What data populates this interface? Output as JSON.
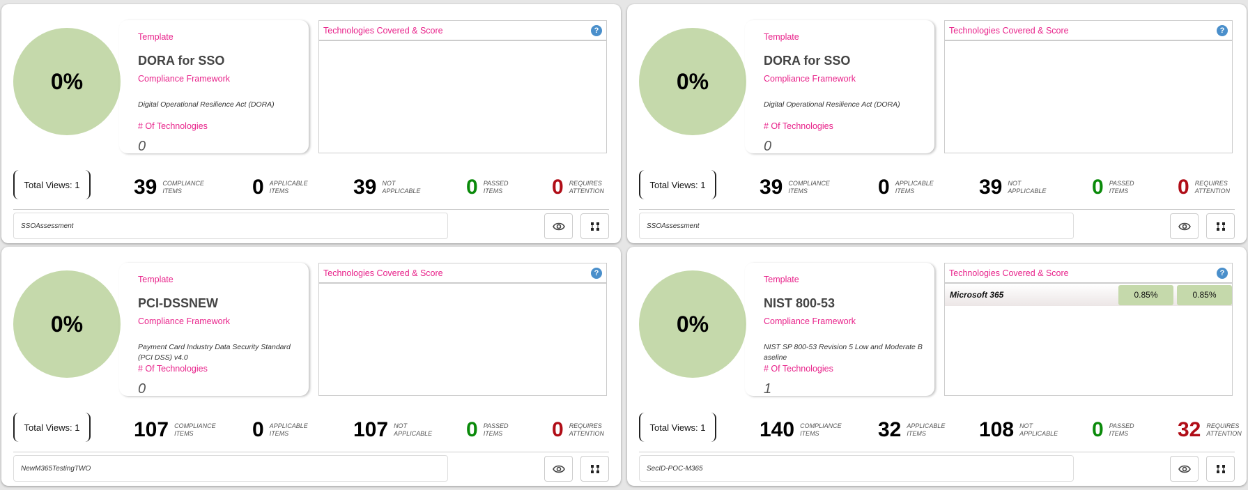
{
  "labels": {
    "template": "Template",
    "framework": "Compliance Framework",
    "num_tech": "# Of Technologies",
    "tech_header": "Technologies Covered & Score",
    "help": "?"
  },
  "stat_labels": {
    "compliance": [
      "COMPLIANCE",
      "ITEMS"
    ],
    "applicable": [
      "APPLICABLE",
      "ITEMS"
    ],
    "not_applicable": [
      "NOT",
      "APPLICABLE"
    ],
    "passed": [
      "PASSED",
      "ITEMS"
    ],
    "attention": [
      "REQUIRES",
      "ATTENTION"
    ]
  },
  "colors": {
    "passed": "#0a8a0a",
    "attention": "#b00d17"
  },
  "cards": [
    {
      "score": "0%",
      "template": "DORA for SSO",
      "framework": "Digital Operational Resilience Act (DORA)",
      "num_tech": "0",
      "views": "Total Views: 1",
      "compliance": "39",
      "applicable": "0",
      "not_applicable": "39",
      "passed": "0",
      "attention": "0",
      "name": "SSOAssessment",
      "tech": []
    },
    {
      "score": "0%",
      "template": "DORA for SSO",
      "framework": "Digital Operational Resilience Act (DORA)",
      "num_tech": "0",
      "views": "Total Views: 1",
      "compliance": "39",
      "applicable": "0",
      "not_applicable": "39",
      "passed": "0",
      "attention": "0",
      "name": "SSOAssessment",
      "tech": []
    },
    {
      "score": "0%",
      "template": "PCI-DSSNEW",
      "framework": "Payment Card Industry Data Security Standard (PCI DSS) v4.0",
      "num_tech": "0",
      "views": "Total Views: 1",
      "compliance": "107",
      "applicable": "0",
      "not_applicable": "107",
      "passed": "0",
      "attention": "0",
      "name": "NewM365TestingTWO",
      "tech": []
    },
    {
      "score": "0%",
      "template": "NIST 800-53",
      "framework": "NIST SP 800-53 Revision 5 Low and Moderate B aseline",
      "num_tech": "1",
      "views": "Total Views: 1",
      "compliance": "140",
      "applicable": "32",
      "not_applicable": "108",
      "passed": "0",
      "attention": "32",
      "name": "SecID-POC-M365",
      "tech": [
        {
          "name": "Microsoft 365",
          "score1": "0.85%",
          "score2": "0.85%"
        }
      ]
    }
  ]
}
